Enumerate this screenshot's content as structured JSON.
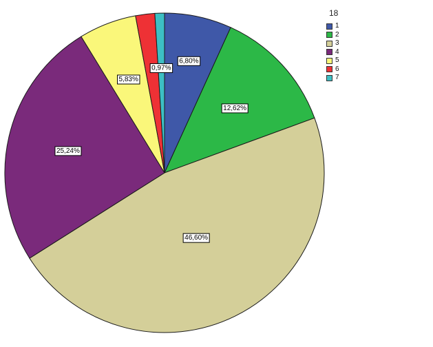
{
  "chart_data": {
    "type": "pie",
    "legend_title": "18",
    "legend_position": "top-right",
    "slices": [
      {
        "label": "1",
        "value": 6.8,
        "display": "6,80%",
        "color": "#3F58A8"
      },
      {
        "label": "2",
        "value": 12.62,
        "display": "12,62%",
        "color": "#2CB847"
      },
      {
        "label": "3",
        "value": 46.6,
        "display": "46,60%",
        "color": "#D4CF99"
      },
      {
        "label": "4",
        "value": 25.24,
        "display": "25,24%",
        "color": "#7A2A7B"
      },
      {
        "label": "5",
        "value": 5.83,
        "display": "5,83%",
        "color": "#FAF77A"
      },
      {
        "label": "6",
        "value": 1.94,
        "display": "",
        "color": "#EE3135"
      },
      {
        "label": "7",
        "value": 0.97,
        "display": "0,97%",
        "color": "#3DBFC4"
      }
    ]
  }
}
